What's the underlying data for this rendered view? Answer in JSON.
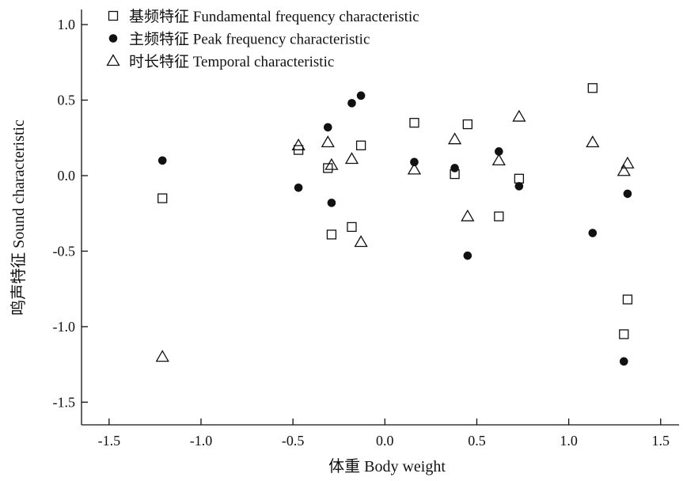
{
  "chart_data": {
    "type": "scatter",
    "xlabel": "体重 Body weight",
    "ylabel": "鸣声特征 Sound characteristic",
    "xlim": [
      -1.65,
      1.6
    ],
    "ylim": [
      -1.65,
      1.1
    ],
    "x_ticks": [
      -1.5,
      -1.0,
      -0.5,
      0.0,
      0.5,
      1.0,
      1.5
    ],
    "x_tick_labels": [
      "-1.5",
      "-1.0",
      "-0.5",
      "0.0",
      "0.5",
      "1.0",
      "1.5"
    ],
    "y_ticks": [
      1.0,
      0.5,
      0.0,
      -0.5,
      -1.0,
      -1.5
    ],
    "y_tick_labels": [
      "1.0",
      "0.5",
      "0.0",
      "-0.5",
      "-1.0",
      "-1.5"
    ],
    "grid": false,
    "legend_position": "top-left",
    "series": [
      {
        "name": "基频特征 Fundamental frequency characteristic",
        "marker": "open-square",
        "points": [
          [
            -1.21,
            -0.15
          ],
          [
            -0.47,
            0.17
          ],
          [
            -0.31,
            0.05
          ],
          [
            -0.29,
            -0.39
          ],
          [
            -0.18,
            -0.34
          ],
          [
            -0.13,
            0.2
          ],
          [
            0.16,
            0.35
          ],
          [
            0.38,
            0.01
          ],
          [
            0.45,
            0.34
          ],
          [
            0.62,
            -0.27
          ],
          [
            0.73,
            -0.02
          ],
          [
            1.13,
            0.58
          ],
          [
            1.3,
            -1.05
          ],
          [
            1.32,
            -0.82
          ]
        ]
      },
      {
        "name": "主频特征 Peak frequency characteristic",
        "marker": "filled-circle",
        "points": [
          [
            -1.21,
            0.1
          ],
          [
            -0.47,
            -0.08
          ],
          [
            -0.31,
            0.32
          ],
          [
            -0.29,
            -0.18
          ],
          [
            -0.18,
            0.48
          ],
          [
            -0.13,
            0.53
          ],
          [
            0.16,
            0.09
          ],
          [
            0.38,
            0.05
          ],
          [
            0.45,
            -0.53
          ],
          [
            0.62,
            0.16
          ],
          [
            0.73,
            -0.07
          ],
          [
            1.13,
            -0.38
          ],
          [
            1.3,
            -1.23
          ],
          [
            1.32,
            -0.12
          ]
        ]
      },
      {
        "name": "时长特征 Temporal characteristic",
        "marker": "open-triangle",
        "points": [
          [
            -1.21,
            -1.2
          ],
          [
            -0.47,
            0.2
          ],
          [
            -0.31,
            0.22
          ],
          [
            -0.29,
            0.07
          ],
          [
            -0.18,
            0.11
          ],
          [
            -0.13,
            -0.44
          ],
          [
            0.16,
            0.04
          ],
          [
            0.38,
            0.24
          ],
          [
            0.45,
            -0.27
          ],
          [
            0.62,
            0.1
          ],
          [
            0.73,
            0.39
          ],
          [
            1.13,
            0.22
          ],
          [
            1.3,
            0.03
          ],
          [
            1.32,
            0.08
          ]
        ]
      }
    ]
  }
}
